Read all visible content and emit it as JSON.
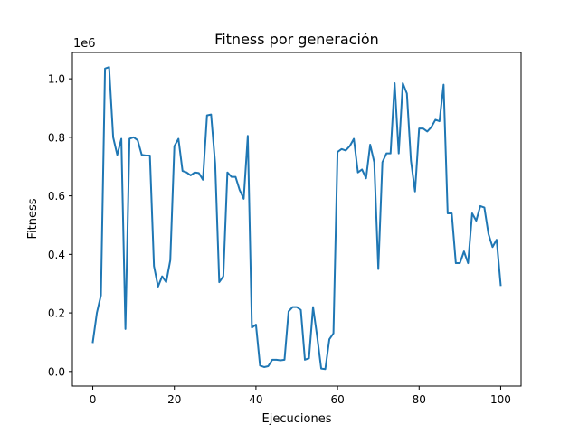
{
  "chart_data": {
    "type": "line",
    "title": "Fitness por generación",
    "xlabel": "Ejecuciones",
    "ylabel": "Fitness",
    "y_offset_label": "1e6",
    "xlim": [
      -5,
      105
    ],
    "ylim": [
      -0.05,
      1.09
    ],
    "xticks": [
      0,
      20,
      40,
      60,
      80,
      100
    ],
    "yticks": [
      0.0,
      0.2,
      0.4,
      0.6,
      0.8,
      1.0
    ],
    "xtick_labels": [
      "0",
      "20",
      "40",
      "60",
      "80",
      "100"
    ],
    "ytick_labels": [
      "0.0",
      "0.2",
      "0.4",
      "0.6",
      "0.8",
      "1.0"
    ],
    "grid": false,
    "line_color": "#1f77b4",
    "series": [
      {
        "x": [
          0,
          1,
          2,
          3,
          4,
          5,
          6,
          7,
          8,
          9,
          10,
          11,
          12,
          13,
          14,
          15,
          16,
          17,
          18,
          19,
          20,
          21,
          22,
          23,
          24,
          25,
          26,
          27,
          28,
          29,
          30,
          31,
          32,
          33,
          34,
          35,
          36,
          37,
          38,
          39,
          40,
          41,
          42,
          43,
          44,
          45,
          46,
          47,
          48,
          49,
          50,
          51,
          52,
          53,
          54,
          55,
          56,
          57,
          58,
          59,
          60,
          61,
          62,
          63,
          64,
          65,
          66,
          67,
          68,
          69,
          70,
          71,
          72,
          73,
          74,
          75,
          76,
          77,
          78,
          79,
          80,
          81,
          82,
          83,
          84,
          85,
          86,
          87,
          88,
          89,
          90,
          91,
          92,
          93,
          94,
          95,
          96,
          97,
          98,
          99,
          100
        ],
        "values": [
          0.1,
          0.2,
          0.26,
          1.035,
          1.04,
          0.8,
          0.74,
          0.795,
          0.145,
          0.795,
          0.8,
          0.79,
          0.74,
          0.738,
          0.738,
          0.36,
          0.29,
          0.325,
          0.305,
          0.38,
          0.77,
          0.795,
          0.685,
          0.68,
          0.67,
          0.68,
          0.678,
          0.655,
          0.875,
          0.878,
          0.71,
          0.305,
          0.325,
          0.68,
          0.665,
          0.665,
          0.62,
          0.59,
          0.805,
          0.15,
          0.16,
          0.02,
          0.015,
          0.018,
          0.04,
          0.04,
          0.038,
          0.04,
          0.205,
          0.22,
          0.22,
          0.21,
          0.04,
          0.045,
          0.22,
          0.12,
          0.01,
          0.008,
          0.11,
          0.13,
          0.75,
          0.76,
          0.755,
          0.77,
          0.795,
          0.68,
          0.69,
          0.66,
          0.775,
          0.715,
          0.35,
          0.715,
          0.745,
          0.745,
          0.985,
          0.745,
          0.985,
          0.95,
          0.72,
          0.615,
          0.83,
          0.83,
          0.82,
          0.835,
          0.86,
          0.855,
          0.98,
          0.54,
          0.54,
          0.37,
          0.37,
          0.41,
          0.37,
          0.54,
          0.515,
          0.565,
          0.56,
          0.47,
          0.425,
          0.45,
          0.295
        ]
      }
    ]
  }
}
